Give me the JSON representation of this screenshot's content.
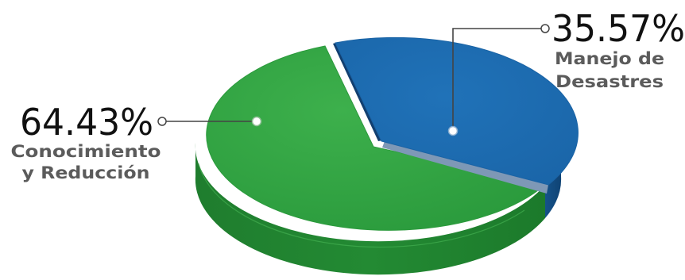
{
  "chart_data": {
    "type": "pie",
    "style": "3d",
    "series": [
      {
        "values": [
          64.43,
          35.57
        ]
      }
    ],
    "slices": [
      {
        "name": "Conocimiento y Reducción",
        "label_lines": [
          "Conocimiento",
          "y Reducción"
        ],
        "value": 64.43,
        "value_label": "64.43%",
        "color": "#33a244"
      },
      {
        "name": "Manejo de Desastres",
        "label_lines": [
          "Manejo de",
          "Desastres"
        ],
        "value": 35.57,
        "value_label": "35.57%",
        "color": "#1b6bb0"
      }
    ]
  }
}
